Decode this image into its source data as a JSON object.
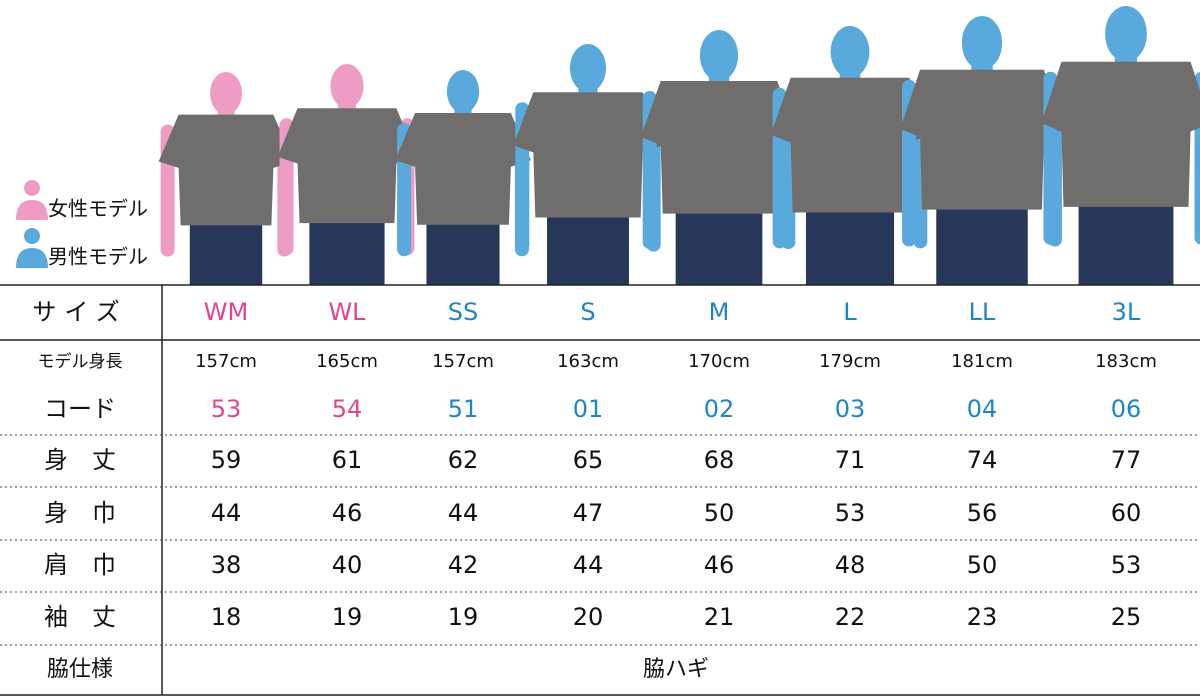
{
  "legend": {
    "female": "女性モデル",
    "male": "男性モデル",
    "female_color": "#ef9cc4",
    "male_color": "#5aa9dc"
  },
  "table": {
    "header": {
      "label": "サイズ",
      "cells": [
        "WM",
        "WL",
        "SS",
        "S",
        "M",
        "L",
        "LL",
        "3L"
      ]
    },
    "column_colors": [
      "#e0468f",
      "#e0468f",
      "#1f86c4",
      "#1f86c4",
      "#1f86c4",
      "#1f86c4",
      "#1f86c4",
      "#1f86c4"
    ],
    "rows": [
      {
        "label": "モデル身長",
        "cells": [
          "157cm",
          "165cm",
          "157cm",
          "163cm",
          "170cm",
          "179cm",
          "181cm",
          "183cm"
        ]
      },
      {
        "label": "コード",
        "cells": [
          "53",
          "54",
          "51",
          "01",
          "02",
          "03",
          "04",
          "06"
        ]
      },
      {
        "label": "身　丈",
        "cells": [
          59,
          61,
          62,
          65,
          68,
          71,
          74,
          77
        ]
      },
      {
        "label": "身　巾",
        "cells": [
          44,
          46,
          44,
          47,
          50,
          53,
          56,
          60
        ]
      },
      {
        "label": "肩　巾",
        "cells": [
          38,
          40,
          42,
          44,
          46,
          48,
          50,
          53
        ]
      },
      {
        "label": "袖　丈",
        "cells": [
          18,
          19,
          19,
          20,
          21,
          22,
          23,
          25
        ]
      }
    ],
    "footer": {
      "label": "脇仕様",
      "value": "脇ハギ"
    }
  }
}
